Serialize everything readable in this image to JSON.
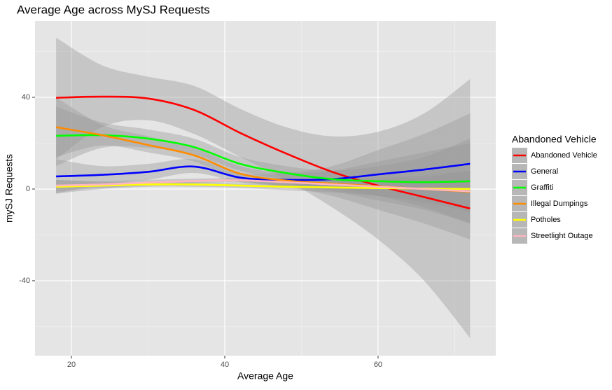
{
  "chart_data": {
    "type": "line",
    "title": "Average Age across MySJ Requests",
    "x_label": "Average Age",
    "y_label": "mySJ Requests",
    "legend_title": "Abandoned Vehicle",
    "x": [
      18,
      24,
      30,
      36,
      42,
      48,
      54,
      60,
      66,
      72
    ],
    "xlim": [
      15.25,
      75.35
    ],
    "xticks": [
      20,
      40,
      60
    ],
    "ylim": [
      -72.7,
      73.3
    ],
    "yticks": [
      -40,
      0,
      40
    ],
    "grid": true,
    "minor_grid": true,
    "band_color": "#999999",
    "series": [
      {
        "name": "Abandoned Vehicle",
        "color": "#ff0000",
        "values": [
          39.8,
          40.3,
          39.5,
          34.5,
          24.5,
          15.5,
          7.5,
          1.5,
          -3.5,
          -8.5
        ],
        "lower": [
          13,
          27,
          30,
          24,
          14,
          4,
          -8,
          -22,
          -40,
          -65
        ],
        "upper": [
          66,
          54,
          49,
          45,
          35,
          27,
          23,
          25,
          33,
          48
        ]
      },
      {
        "name": "General",
        "color": "#0000ff",
        "values": [
          5.5,
          6.2,
          7.5,
          9.8,
          5,
          4,
          4.3,
          6.4,
          8.5,
          11
        ],
        "lower": [
          -2,
          2,
          4,
          7,
          3,
          1,
          -1,
          -5,
          -9,
          -15
        ],
        "upper": [
          13,
          10,
          11,
          13,
          7,
          7,
          10,
          17,
          24,
          33
        ]
      },
      {
        "name": "Graffiti",
        "color": "#00ff00",
        "values": [
          23.2,
          23.5,
          22,
          18.3,
          11,
          7,
          4.3,
          3.4,
          3,
          3.4
        ],
        "lower": [
          10,
          18,
          18,
          15,
          8,
          4,
          1,
          -3,
          -8,
          -15
        ],
        "upper": [
          36,
          29,
          26,
          22,
          14,
          10,
          8,
          10,
          14,
          22
        ]
      },
      {
        "name": "Illegal Dumpings",
        "color": "#ff8c00",
        "values": [
          27,
          23.5,
          19.2,
          14.7,
          6.7,
          3.7,
          2.4,
          1.2,
          0,
          -1.2
        ],
        "lower": [
          14,
          19,
          16,
          12,
          4,
          1,
          -3,
          -9,
          -15,
          -22
        ],
        "upper": [
          40,
          28,
          23,
          18,
          10,
          7,
          8,
          12,
          16,
          20
        ]
      },
      {
        "name": "Potholes",
        "color": "#ffff00",
        "values": [
          1,
          1.5,
          2,
          2,
          1.5,
          1,
          0.7,
          0.4,
          0.2,
          0
        ],
        "lower": [
          -2,
          0,
          1,
          1,
          0.5,
          -0.5,
          -1.5,
          -3,
          -5,
          -8
        ],
        "upper": [
          4,
          3,
          3,
          3,
          2.5,
          2.5,
          3,
          4,
          5,
          8
        ]
      },
      {
        "name": "Streetlight Outage",
        "color": "#ffb6c1",
        "values": [
          1.5,
          2,
          2.8,
          3.5,
          3.8,
          3,
          2,
          1,
          0,
          -1
        ],
        "lower": [
          -1,
          0.5,
          1.5,
          2.5,
          2.8,
          1.5,
          -0.5,
          -3,
          -6,
          -10
        ],
        "upper": [
          4,
          3.5,
          4,
          4.5,
          4.8,
          4.5,
          4.5,
          5,
          6,
          8
        ]
      }
    ]
  }
}
